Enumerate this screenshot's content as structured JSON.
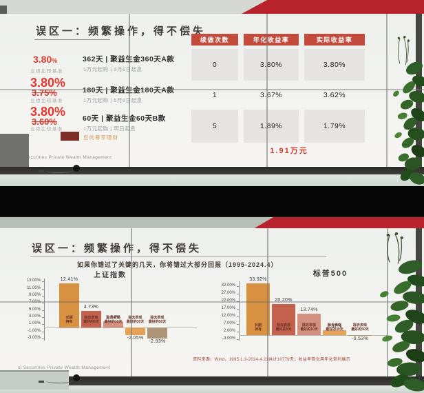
{
  "photo_top": {
    "slide": {
      "title": "误区一：频繁操作，得不偿失",
      "products": [
        {
          "rate": "3.80",
          "unit": "%",
          "benchmark": "业绩比较基准",
          "name": "362天 | 聚益生金360天A款",
          "detail": "1万元起购 | 5月6日起息"
        },
        {
          "rate": "3.80%",
          "old": "3.75%",
          "benchmark": "业绩比较基准",
          "name": "180天 | 聚益生金180天A款",
          "detail": "1万元起购 | 5月6日起息"
        },
        {
          "rate": "3.80%",
          "old": "3.60%",
          "benchmark": "业绩比较基准",
          "name": "60天 | 聚益生金60天B款",
          "detail": "1万元起购 | 明日起息",
          "extra": "您的尊享理财"
        }
      ],
      "table": {
        "headers": [
          "续做次数",
          "年化收益率",
          "实际收益率"
        ],
        "rows": [
          [
            "0",
            "3.80%",
            "3.80%"
          ],
          [
            "1",
            "3.67%",
            "3.62%"
          ],
          [
            "5",
            "1.89%",
            "1.79%"
          ]
        ]
      },
      "highlight": "1.91万元",
      "footer": "xi Securities Private Wealth Management"
    }
  },
  "photo_bottom": {
    "slide": {
      "title": "误区一：频繁操作，得不偿失",
      "subtitle": "如果你错过了关键的几天，你将错过大部分回报（1995-2024.4）",
      "source": "资料来源：Wind，1995.1.3-2024.4.23共计10779天；收益率简化用年化单利展示",
      "footer": "xi Securities Private Wealth Management"
    }
  },
  "chart_data": [
    {
      "type": "bar",
      "title": "上证指数",
      "categories": [
        "长期\n持有",
        "除去表现\n最好的5天",
        "除去表现\n最好的10天",
        "除去表现\n最好的30天",
        "除去表现\n最好的50天"
      ],
      "values": [
        12.41,
        4.73,
        1.84,
        -2.05,
        -2.93
      ],
      "value_labels": [
        "12.41%",
        "4.73%",
        "1.84%",
        "-2.05%",
        "-2.93%"
      ],
      "yticks": [
        13,
        11,
        9,
        7,
        5,
        3,
        1,
        -1,
        -3
      ],
      "ytick_labels": [
        "13.00%",
        "11.00%",
        "9.00%",
        "7.00%",
        "5.00%",
        "3.00%",
        "1.00%",
        "-1.00%",
        "-3.00%"
      ],
      "ylim": [
        -3.6,
        13.8
      ],
      "xlabel": "",
      "ylabel": "",
      "grid": false,
      "legend": "none",
      "bar_colors": [
        "#d89140",
        "#c4614d",
        "#d4917f",
        "#e3a257",
        "#ad9478"
      ]
    },
    {
      "type": "bar",
      "title": "标普500",
      "categories": [
        "长期\n持有",
        "除去表现\n最好的5天",
        "除去表现\n最好的10天",
        "除去表现\n最好的30天",
        "除去表现\n最好的50天"
      ],
      "values": [
        33.92,
        20.2,
        13.74,
        2.97,
        -0.53
      ],
      "value_labels": [
        "33.92%",
        "20.20%",
        "13.74%",
        "2.97%",
        "-0.53%"
      ],
      "yticks": [
        32,
        27,
        22,
        17,
        12,
        7,
        2,
        -3
      ],
      "ytick_labels": [
        "32.00%",
        "27.00%",
        "22.00%",
        "17.00%",
        "12.00%",
        "7.00%",
        "2.00%",
        "-3.00%"
      ],
      "ylim": [
        -3.8,
        35.2
      ],
      "xlabel": "",
      "ylabel": "",
      "grid": false,
      "legend": "none",
      "bar_colors": [
        "#d89140",
        "#c4614d",
        "#d4917f",
        "#e3a257",
        "#ad9478"
      ]
    }
  ],
  "colors": {
    "banner_red": "#b8232b",
    "table_header_red": "#c24b3c",
    "rate_red": "#e0392e",
    "highlight_red": "#d0372a",
    "extra_orange": "#d79b5c"
  }
}
